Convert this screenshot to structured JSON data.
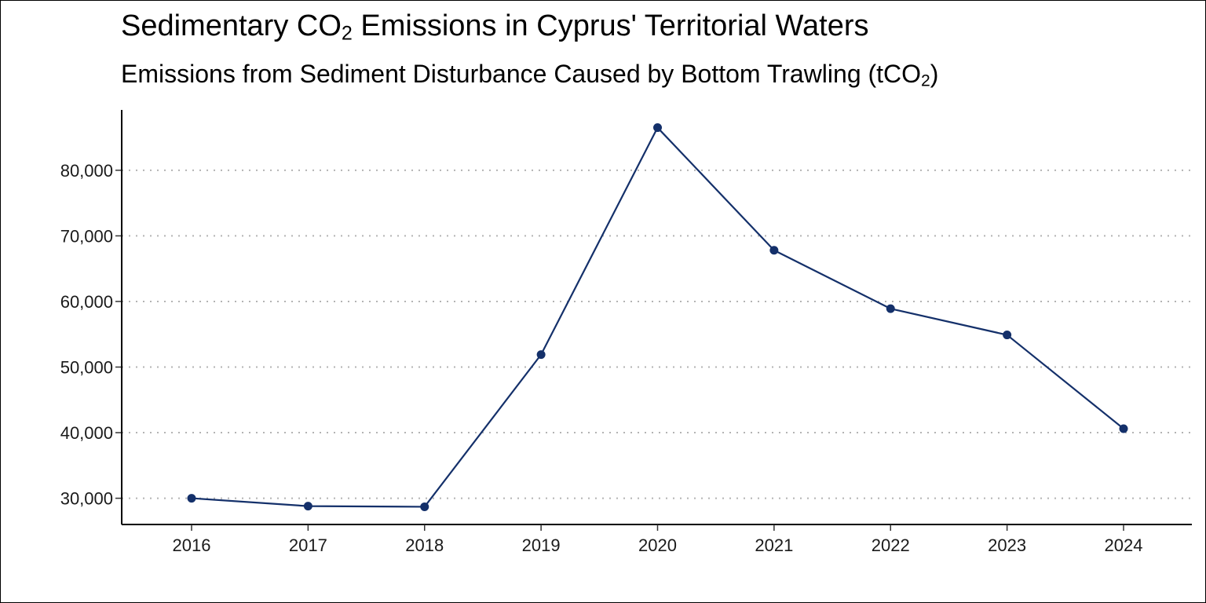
{
  "chart_data": {
    "type": "line",
    "title": {
      "pre": "Sedimentary CO",
      "sub": "2",
      "post": " Emissions in Cyprus' Territorial Waters"
    },
    "subtitle": {
      "pre": "Emissions from Sediment Disturbance Caused by Bottom Trawling (tCO",
      "sub": "2",
      "post": ")"
    },
    "xlabel": "",
    "ylabel": "",
    "x": [
      "2016",
      "2017",
      "2018",
      "2019",
      "2020",
      "2021",
      "2022",
      "2023",
      "2024"
    ],
    "series": [
      {
        "values": [
          30000,
          28800,
          28700,
          51900,
          86500,
          67800,
          58900,
          54900,
          40600
        ],
        "color": "#14306a"
      }
    ],
    "ylim": [
      26000,
      89200
    ],
    "yticks": [
      30000,
      40000,
      50000,
      60000,
      70000,
      80000
    ],
    "ytick_labels": [
      "30,000",
      "40,000",
      "50,000",
      "60,000",
      "70,000",
      "80,000"
    ],
    "grid": {
      "y_major": true,
      "style": "dotted",
      "color": "#b3b3b3"
    },
    "legend": "none"
  }
}
